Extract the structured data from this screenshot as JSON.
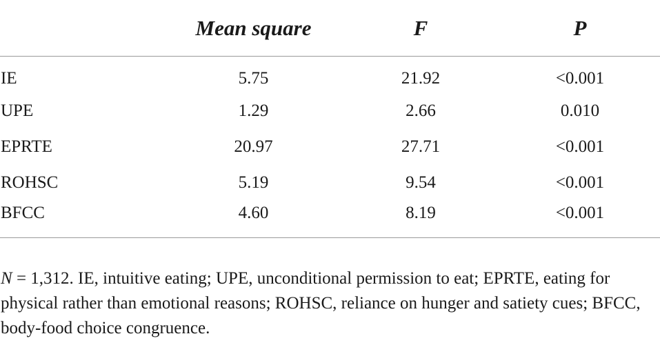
{
  "table": {
    "headers": [
      "",
      "Mean square",
      "F",
      "P"
    ],
    "rows": [
      {
        "label": "IE",
        "mean_square": "5.75",
        "f": "21.92",
        "p": "<0.001"
      },
      {
        "label": "UPE",
        "mean_square": "1.29",
        "f": "2.66",
        "p": "0.010"
      },
      {
        "label": "EPRTE",
        "mean_square": "20.97",
        "f": "27.71",
        "p": "<0.001"
      },
      {
        "label": "ROHSC",
        "mean_square": "5.19",
        "f": "9.54",
        "p": "<0.001"
      },
      {
        "label": "BFCC",
        "mean_square": "4.60",
        "f": "8.19",
        "p": "<0.001"
      }
    ]
  },
  "footnote": {
    "n_symbol": "N",
    "text": " = 1,312. IE, intuitive eating; UPE, unconditional permission to eat; EPRTE, eating for physical rather than emotional reasons; ROHSC, reliance on hunger and satiety cues; BFCC, body-food choice congruence."
  }
}
